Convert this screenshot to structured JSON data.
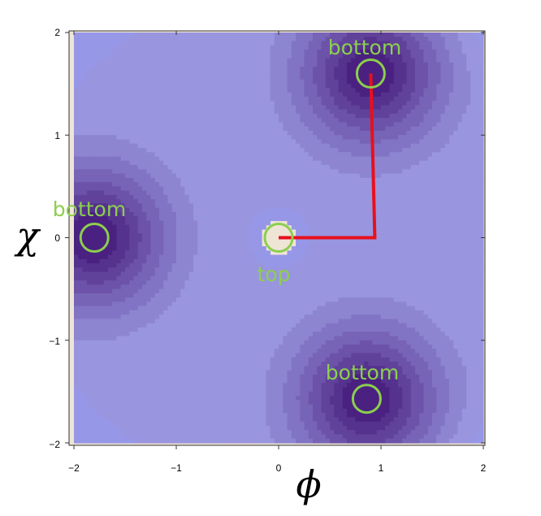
{
  "chart_data": {
    "type": "contour",
    "xlabel": "ϕ",
    "ylabel": "χ",
    "xlim": [
      -2,
      2
    ],
    "ylim": [
      -2,
      2
    ],
    "x_ticks": [
      -2,
      -1,
      0,
      1,
      2
    ],
    "y_ticks": [
      -2,
      -1,
      0,
      1,
      2
    ],
    "tick_labels": {
      "-2": "−2",
      "-1": "−1",
      "0": "0",
      "1": "1",
      "2": "2"
    },
    "field": "tri-well potential: local maximum at origin, three minima at 120° spacing",
    "contour_levels": 8,
    "colors": {
      "outside": "#efe5d6",
      "plateau": "#9797e8",
      "level_light": "#a4a6ec",
      "level_dark": "#4a2180",
      "contour_line": "#2a2a50",
      "annotation": "#8ccf4e",
      "path": "#e8101c"
    },
    "minima": [
      {
        "x": 0.9,
        "y": 1.6,
        "label": "bottom"
      },
      {
        "x": -1.8,
        "y": 0.0,
        "label": "bottom"
      },
      {
        "x": 0.86,
        "y": -1.57,
        "label": "bottom"
      }
    ],
    "maximum": {
      "x": 0.0,
      "y": 0.0,
      "label": "top"
    },
    "path": [
      [
        0.0,
        0.0
      ],
      [
        0.94,
        0.0
      ],
      [
        0.9,
        1.6
      ]
    ]
  }
}
